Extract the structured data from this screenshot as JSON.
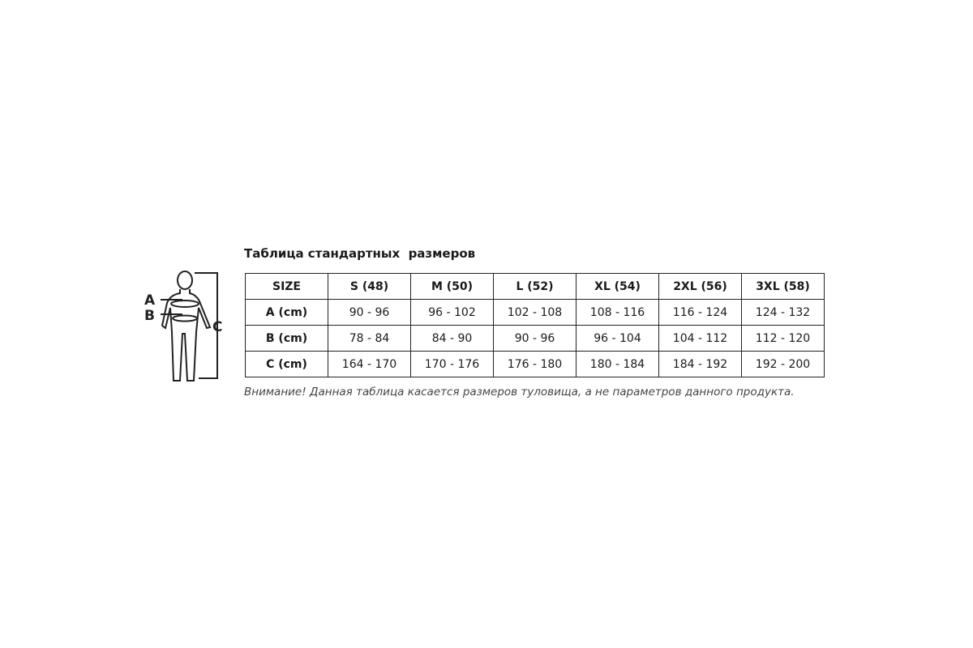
{
  "title": "Таблица стандартных  размеров",
  "figure": {
    "labels": [
      "A",
      "B",
      "C"
    ]
  },
  "table": {
    "header": [
      "SIZE",
      "S (48)",
      "M (50)",
      "L (52)",
      "XL (54)",
      "2XL (56)",
      "3XL (58)"
    ],
    "rows": [
      [
        "A (cm)",
        "90 - 96",
        "96 - 102",
        "102 - 108",
        "108 - 116",
        "116 - 124",
        "124 - 132"
      ],
      [
        "B (cm)",
        "78 - 84",
        "84 - 90",
        "90 - 96",
        "96 - 104",
        "104 - 112",
        "112 - 120"
      ],
      [
        "C (cm)",
        "164 - 170",
        "170 - 176",
        "176 - 180",
        "180 - 184",
        "184 - 192",
        "192 - 200"
      ]
    ]
  },
  "note": "Внимание! Данная таблица касается размеров туловища, а не параметров данного продукта."
}
